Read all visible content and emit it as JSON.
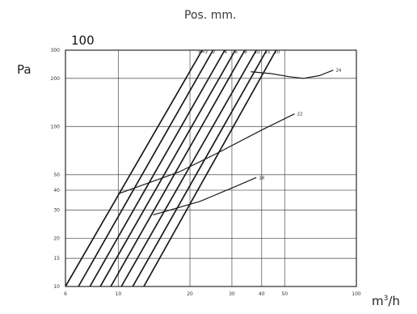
{
  "title": "Pos. mm.",
  "corner_value": "100",
  "y_unit": "Pa",
  "x_unit_base": "m",
  "x_unit_exp": "3",
  "x_unit_tail": "/h",
  "colors": {
    "line": "#1a1a1a",
    "grid": "#2a2a2a",
    "background": "#ffffff"
  },
  "chart_data": {
    "type": "line",
    "title": "Pos. mm.",
    "xlabel": "m³/h",
    "ylabel": "Pa",
    "x_scale": "log",
    "y_scale": "log",
    "xlim": [
      6,
      100
    ],
    "ylim": [
      10,
      300
    ],
    "grid": true,
    "x_ticks": [
      "6",
      "10",
      "20",
      "30",
      "40",
      "50",
      "100"
    ],
    "y_ticks": [
      "10",
      "15",
      "20",
      "30",
      "40",
      "50",
      "100",
      "200",
      "300"
    ],
    "position_labels": [
      "n=3",
      "2",
      "4",
      "6",
      "8",
      "10",
      "15",
      "20"
    ],
    "series": [
      {
        "name": "n=3",
        "x": [
          6.0,
          22.5
        ],
        "y": [
          10,
          300
        ]
      },
      {
        "name": "2",
        "x": [
          6.8,
          25.0
        ],
        "y": [
          10,
          300
        ]
      },
      {
        "name": "4",
        "x": [
          7.6,
          28.0
        ],
        "y": [
          10,
          300
        ]
      },
      {
        "name": "6",
        "x": [
          8.4,
          31.0
        ],
        "y": [
          10,
          300
        ]
      },
      {
        "name": "8",
        "x": [
          9.3,
          34.0
        ],
        "y": [
          10,
          300
        ]
      },
      {
        "name": "10",
        "x": [
          10.3,
          38.0
        ],
        "y": [
          10,
          300
        ]
      },
      {
        "name": "15",
        "x": [
          11.5,
          42.0
        ],
        "y": [
          10,
          300
        ]
      },
      {
        "name": "20",
        "x": [
          12.8,
          46.0
        ],
        "y": [
          10,
          300
        ]
      }
    ],
    "curves": [
      {
        "label": "24",
        "x": [
          36,
          44,
          52,
          60,
          70,
          80
        ],
        "y": [
          220,
          214,
          205,
          200,
          208,
          225
        ]
      },
      {
        "label": "22",
        "x": [
          10,
          18,
          26,
          40,
          55
        ],
        "y": [
          38,
          52,
          68,
          95,
          120
        ]
      },
      {
        "label": "18",
        "x": [
          14,
          22,
          32,
          38
        ],
        "y": [
          28,
          34,
          43,
          48
        ]
      }
    ]
  }
}
